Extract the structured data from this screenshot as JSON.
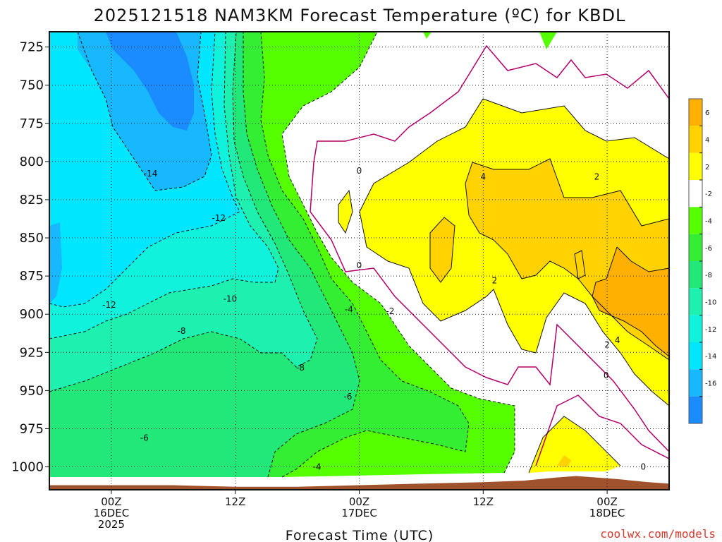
{
  "title": "2025121518 NAM3KM Forecast Temperature (ºC) for KBDL",
  "credit": "coolwx.com/models",
  "chart_data": {
    "type": "heatmap",
    "title": "2025121518 NAM3KM Forecast Temperature (ºC) for KBDL",
    "xlabel": "Forecast Time (UTC)",
    "ylabel": "",
    "ylim": [
      1015,
      715
    ],
    "y_reversed": true,
    "y_ticks": [
      725,
      750,
      775,
      800,
      825,
      850,
      875,
      900,
      925,
      950,
      975,
      1000
    ],
    "x_ticks": [
      {
        "hour": 6,
        "lines": [
          "00Z",
          "16DEC",
          "2025"
        ]
      },
      {
        "hour": 18,
        "lines": [
          "12Z"
        ]
      },
      {
        "hour": 30,
        "lines": [
          "00Z",
          "17DEC"
        ]
      },
      {
        "hour": 42,
        "lines": [
          "12Z"
        ]
      },
      {
        "hour": 54,
        "lines": [
          "00Z",
          "18DEC"
        ]
      }
    ],
    "xlim": [
      0,
      60
    ],
    "grid": true,
    "colorbar": {
      "ticks": [
        "6",
        "4",
        "2",
        "-2",
        "-4",
        "-6",
        "-8",
        "-10",
        "-12",
        "-14",
        "-16"
      ],
      "bands": [
        {
          "min": 6,
          "max": 8,
          "color": "#ffb000"
        },
        {
          "min": 4,
          "max": 6,
          "color": "#ffd200"
        },
        {
          "min": 2,
          "max": 4,
          "color": "#ffff00"
        },
        {
          "min": -2,
          "max": 2,
          "color": "#ffffff"
        },
        {
          "min": -4,
          "max": -2,
          "color": "#55ff00"
        },
        {
          "min": -6,
          "max": -4,
          "color": "#33ee33"
        },
        {
          "min": -8,
          "max": -6,
          "color": "#22e87a"
        },
        {
          "min": -10,
          "max": -8,
          "color": "#1ef0b0"
        },
        {
          "min": -12,
          "max": -10,
          "color": "#11f2dd"
        },
        {
          "min": -14,
          "max": -12,
          "color": "#00e6ff"
        },
        {
          "min": -16,
          "max": -14,
          "color": "#18b8ff"
        },
        {
          "min": -18,
          "max": -16,
          "color": "#1a8cff"
        }
      ]
    },
    "contour_labels": [
      {
        "text": "-14",
        "hour": 9.8,
        "p": 808
      },
      {
        "text": "-12",
        "hour": 16.4,
        "p": 837
      },
      {
        "text": "-12",
        "hour": 5.8,
        "p": 894
      },
      {
        "text": "-10",
        "hour": 17.5,
        "p": 890
      },
      {
        "text": "-8",
        "hour": 12.8,
        "p": 911
      },
      {
        "text": "-8",
        "hour": 24.3,
        "p": 935
      },
      {
        "text": "-6",
        "hour": 9.2,
        "p": 981
      },
      {
        "text": "-6",
        "hour": 28.9,
        "p": 954
      },
      {
        "text": "-4",
        "hour": 29.0,
        "p": 897
      },
      {
        "text": "-4",
        "hour": 25.9,
        "p": 1000
      },
      {
        "text": "-2",
        "hour": 33.0,
        "p": 898
      },
      {
        "text": "0",
        "hour": 30.0,
        "p": 806
      },
      {
        "text": "0",
        "hour": 30.0,
        "p": 868
      },
      {
        "text": "0",
        "hour": 53.9,
        "p": 940
      },
      {
        "text": "0",
        "hour": 57.5,
        "p": 1000
      },
      {
        "text": "2",
        "hour": 43.1,
        "p": 878
      },
      {
        "text": "2",
        "hour": 53.0,
        "p": 810
      },
      {
        "text": "2",
        "hour": 54.0,
        "p": 920
      },
      {
        "text": "4",
        "hour": 42.0,
        "p": 810
      },
      {
        "text": "4",
        "hour": 55.0,
        "p": 917
      }
    ],
    "ground": [
      [
        0,
        1012
      ],
      [
        6,
        1012
      ],
      [
        12,
        1012
      ],
      [
        18,
        1013
      ],
      [
        24,
        1013
      ],
      [
        30,
        1012
      ],
      [
        36,
        1011
      ],
      [
        42,
        1010
      ],
      [
        46,
        1009
      ],
      [
        49,
        1007
      ],
      [
        51,
        1006
      ],
      [
        55,
        1008
      ],
      [
        58,
        1010
      ],
      [
        60,
        1011
      ]
    ]
  }
}
